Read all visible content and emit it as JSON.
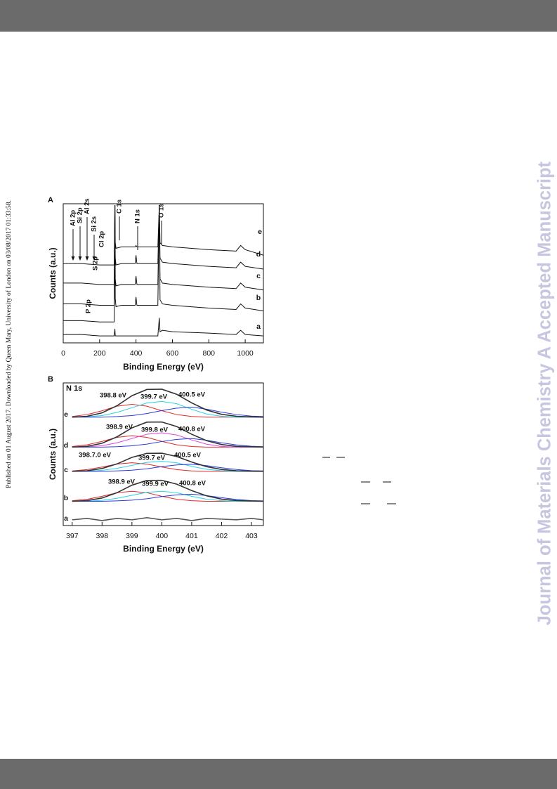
{
  "side_text": "Published on 01 August 2017. Downloaded by Queen Mary, University of London on 03/08/2017 01:33:58.",
  "watermark": "Journal of Materials Chemistry A Accepted Manuscript",
  "chart_data": [
    {
      "type": "line",
      "panel": "A",
      "xlabel": "Binding Energy (eV)",
      "ylabel": "Counts (a.u.)",
      "xlim": [
        0,
        1100
      ],
      "xticks": [
        0,
        200,
        400,
        600,
        800,
        1000
      ],
      "ylim": [
        0,
        100
      ],
      "color": "#111111",
      "annotations": [
        "Al 2p",
        "Si 2p",
        "Al 2s",
        "Si 2s",
        "Cl 2p",
        "S 2p",
        "P 2p",
        "C 1s",
        "N 1s",
        "O 1s"
      ],
      "x": [
        0,
        100,
        200,
        280,
        284,
        286,
        290,
        320,
        395,
        400,
        405,
        520,
        528,
        532,
        545,
        600,
        800,
        950,
        975,
        1000,
        1100
      ],
      "series": [
        {
          "name": "a",
          "values": [
            6,
            6,
            5,
            5,
            10,
            5,
            5,
            5,
            5,
            5,
            5,
            5,
            18,
            8,
            9,
            8,
            7,
            6,
            9,
            6,
            5
          ]
        },
        {
          "name": "b",
          "values": [
            16,
            16,
            15,
            15,
            99,
            32,
            26,
            27,
            27,
            33,
            27,
            27,
            99,
            31,
            28,
            27,
            25,
            24,
            28,
            25,
            23
          ]
        },
        {
          "name": "c",
          "values": [
            28,
            28,
            27,
            27,
            99,
            46,
            41,
            42,
            42,
            48,
            42,
            42,
            99,
            46,
            43,
            42,
            40,
            39,
            43,
            40,
            38
          ]
        },
        {
          "name": "d",
          "values": [
            43,
            43,
            42,
            42,
            99,
            61,
            56,
            57,
            57,
            63,
            57,
            57,
            99,
            61,
            58,
            57,
            55,
            54,
            58,
            55,
            53
          ]
        },
        {
          "name": "e",
          "values": [
            57,
            57,
            56,
            56,
            99,
            72,
            68,
            69,
            69,
            70,
            69,
            69,
            99,
            72,
            70,
            69,
            67,
            66,
            70,
            67,
            63
          ]
        }
      ]
    },
    {
      "type": "line",
      "panel": "B",
      "title": "N 1s",
      "xlabel": "Binding Energy (eV)",
      "ylabel": "Counts (a.u.)",
      "xlim": [
        396.7,
        403.4
      ],
      "xticks": [
        397,
        398,
        399,
        400,
        401,
        402,
        403
      ],
      "ylim": [
        0,
        100
      ],
      "x": [
        397,
        397.5,
        398,
        398.5,
        399,
        399.5,
        400,
        400.5,
        401,
        401.5,
        402,
        402.5,
        403,
        403.4
      ],
      "series": [
        {
          "name": "a",
          "color": "#555555",
          "values": [
            4,
            5,
            3.5,
            5,
            4,
            5.5,
            4,
            5,
            3.5,
            5,
            4.5,
            4,
            5,
            4
          ],
          "labels": [],
          "components": []
        },
        {
          "name": "b",
          "color": "#333333",
          "values": [
            17,
            17.5,
            19.3,
            23,
            28.3,
            31.6,
            31.7,
            29,
            24.5,
            20.8,
            18.5,
            17.5,
            17.2,
            17
          ],
          "labels": [
            "398.9 eV",
            "399.9 eV",
            "400.8 eV"
          ],
          "components": [
            {
              "color": "#e02828",
              "values": [
                17.4,
                18.4,
                20.5,
                23,
                24,
                23,
                20.5,
                18.4,
                17.4,
                17,
                17,
                17,
                17,
                17
              ]
            },
            {
              "color": "#22d3e6",
              "values": [
                17,
                17.1,
                17.7,
                19.1,
                21.2,
                23.3,
                24,
                23,
                20.5,
                18.4,
                17.4,
                17,
                17,
                17
              ]
            },
            {
              "color": "#2a3ad8",
              "values": [
                17,
                17,
                17,
                17.3,
                17.8,
                18.8,
                20.3,
                21.5,
                22,
                21,
                19.5,
                18.3,
                17.5,
                17.3
              ]
            }
          ]
        },
        {
          "name": "c",
          "color": "#333333",
          "values": [
            38,
            38.4,
            40,
            43.2,
            47.8,
            50.6,
            50.7,
            48.4,
            44.5,
            41.3,
            39.3,
            38.4,
            38.1,
            38
          ],
          "labels": [
            "398.7.0 eV",
            "399.7 eV",
            "400.5 eV"
          ],
          "components": [
            {
              "color": "#e02828",
              "values": [
                38.3,
                39.2,
                41,
                43.1,
                44,
                43.1,
                41,
                39.2,
                38.3,
                38,
                38,
                38,
                38,
                38
              ]
            },
            {
              "color": "#22d3e6",
              "values": [
                38,
                38.1,
                38.7,
                40.1,
                42.2,
                44.3,
                45,
                44,
                41.5,
                39.4,
                38.4,
                38,
                38,
                38
              ]
            },
            {
              "color": "#2a3ad8",
              "values": [
                38,
                38,
                38,
                38.3,
                38.8,
                39.8,
                41.3,
                42.5,
                43,
                42,
                40.5,
                39.3,
                38.5,
                38.3
              ]
            }
          ]
        },
        {
          "name": "d",
          "color": "#333333",
          "values": [
            55,
            55.5,
            57.7,
            62.2,
            68.5,
            72.5,
            72.6,
            69.4,
            64,
            59.5,
            56.8,
            55.5,
            55.2,
            55
          ],
          "labels": [
            "398.9 eV",
            "399.8 eV",
            "400.8 eV"
          ],
          "components": [
            {
              "color": "#e02828",
              "values": [
                55.4,
                56.6,
                59,
                61.8,
                63,
                61.8,
                59,
                56.6,
                55.4,
                55,
                55,
                55,
                55,
                55
              ]
            },
            {
              "color": "#e040e0",
              "values": [
                55,
                55.2,
                56,
                58,
                61,
                64,
                65,
                63.5,
                60,
                57,
                55.5,
                55,
                55,
                55
              ]
            },
            {
              "color": "#2a3ad8",
              "values": [
                55,
                55,
                55,
                55.3,
                55.9,
                57.1,
                58.9,
                60.4,
                61,
                59.8,
                58,
                56.5,
                55.6,
                55.3
              ]
            }
          ]
        },
        {
          "name": "e",
          "color": "#333333",
          "values": [
            76,
            76.6,
            79,
            84,
            91,
            95.4,
            95.6,
            92,
            86,
            81,
            78,
            76.6,
            76.2,
            76
          ],
          "labels": [
            "398.8 eV",
            "399.7 eV",
            "400.5 eV"
          ],
          "components": [
            {
              "color": "#e02828",
              "values": [
                76.5,
                77.8,
                80.5,
                83.7,
                85,
                83.7,
                80.5,
                77.8,
                76.5,
                76,
                76,
                76,
                76,
                76
              ]
            },
            {
              "color": "#22d3e6",
              "values": [
                76,
                76.2,
                77.1,
                79.3,
                82.6,
                85.9,
                87,
                85.4,
                81.5,
                78.2,
                76.6,
                76,
                76,
                76
              ]
            },
            {
              "color": "#2a3ad8",
              "values": [
                76,
                76,
                76,
                76.4,
                77.1,
                78.5,
                80.6,
                82.3,
                83,
                81.6,
                79.5,
                77.8,
                76.7,
                76.4
              ]
            }
          ]
        }
      ]
    }
  ]
}
